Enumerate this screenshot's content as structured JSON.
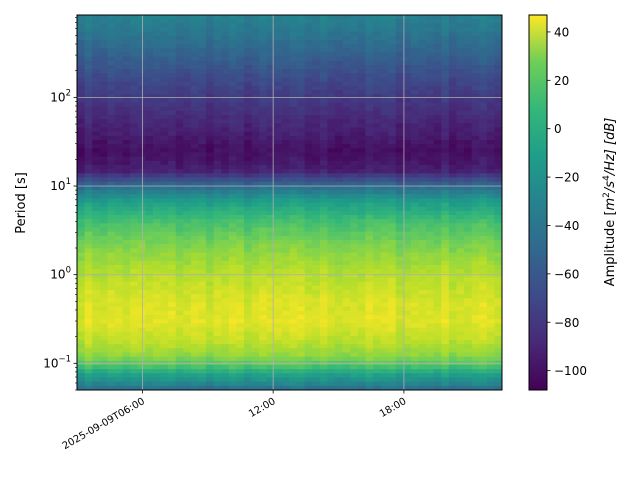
{
  "chart_data": {
    "type": "heatmap",
    "ylabel": "Period [s]",
    "colorbar_label": "Amplitude [m²/s⁴/Hz] [dB]",
    "colorbar_label_parts": {
      "prefix": "Amplitude [",
      "m": "m",
      "m_exp": "2",
      "s": "/s",
      "s_exp": "4",
      "tail": "/Hz] [dB]"
    },
    "y_scale": "log",
    "ylim": [
      0.05,
      850
    ],
    "x_range": [
      "2025-09-09T03:00",
      "2025-09-09T22:30"
    ],
    "x_ticks": [
      {
        "time": "2025-09-09T06:00",
        "label": "2025-09-09T06:00"
      },
      {
        "time": "2025-09-09T12:00",
        "label": "12:00"
      },
      {
        "time": "2025-09-09T18:00",
        "label": "18:00"
      }
    ],
    "y_ticks": [
      {
        "value": 0.1,
        "base": "10",
        "exp": "−1"
      },
      {
        "value": 1,
        "base": "10",
        "exp": "0"
      },
      {
        "value": 10,
        "base": "10",
        "exp": "1"
      },
      {
        "value": 100,
        "base": "10",
        "exp": "2"
      }
    ],
    "colorbar_range": [
      -108,
      47
    ],
    "colorbar_ticks": [
      40,
      20,
      0,
      -20,
      -40,
      -60,
      -80,
      -100
    ],
    "colormap": "viridis",
    "grid": true,
    "amplitude_profile_db": [
      {
        "period": 0.05,
        "db": -55
      },
      {
        "period": 0.06,
        "db": -35
      },
      {
        "period": 0.075,
        "db": -20
      },
      {
        "period": 0.09,
        "db": 0
      },
      {
        "period": 0.12,
        "db": 20
      },
      {
        "period": 0.18,
        "db": 32
      },
      {
        "period": 0.3,
        "db": 40
      },
      {
        "period": 0.5,
        "db": 38
      },
      {
        "period": 1,
        "db": 30
      },
      {
        "period": 2,
        "db": 18
      },
      {
        "period": 4,
        "db": 0
      },
      {
        "period": 7,
        "db": -25
      },
      {
        "period": 10,
        "db": -55
      },
      {
        "period": 15,
        "db": -95
      },
      {
        "period": 25,
        "db": -102
      },
      {
        "period": 40,
        "db": -95
      },
      {
        "period": 80,
        "db": -85
      },
      {
        "period": 150,
        "db": -75
      },
      {
        "period": 300,
        "db": -60
      },
      {
        "period": 600,
        "db": -45
      },
      {
        "period": 850,
        "db": -40
      }
    ]
  }
}
